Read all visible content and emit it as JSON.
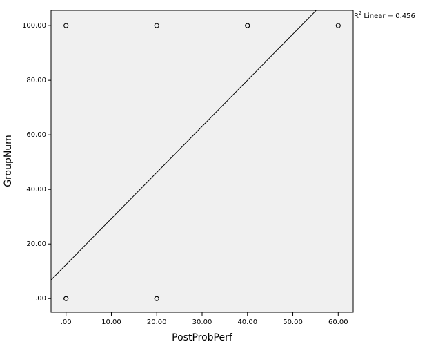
{
  "chart_data": {
    "type": "scatter",
    "x_label": "PostProbPerf",
    "y_label": "GroupNum",
    "x": [
      0,
      20,
      40,
      40,
      60,
      0,
      0,
      20,
      20
    ],
    "y": [
      100,
      100,
      100,
      100,
      100,
      0,
      0,
      0,
      0
    ],
    "xlim": [
      -3.3,
      63.3
    ],
    "ylim": [
      -5,
      105.6
    ],
    "xticks": [
      {
        "value": 0,
        "label": ".00"
      },
      {
        "value": 10,
        "label": "10.00"
      },
      {
        "value": 20,
        "label": "20.00"
      },
      {
        "value": 30,
        "label": "30.00"
      },
      {
        "value": 40,
        "label": "40.00"
      },
      {
        "value": 50,
        "label": "50.00"
      },
      {
        "value": 60,
        "label": "60.00"
      }
    ],
    "yticks": [
      {
        "value": 0,
        "label": ".00"
      },
      {
        "value": 20,
        "label": "20.00"
      },
      {
        "value": 40,
        "label": "40.00"
      },
      {
        "value": 60,
        "label": "60.00"
      },
      {
        "value": 80,
        "label": "80.00"
      },
      {
        "value": 100,
        "label": "100.00"
      }
    ],
    "fit_line": {
      "intercept": 12.4,
      "slope": 1.69
    },
    "annotation": {
      "prefix": "R",
      "superscript": "2",
      "text": "Linear = 0.456"
    },
    "background": "#f0f0f0",
    "marker_color": "#000000"
  }
}
